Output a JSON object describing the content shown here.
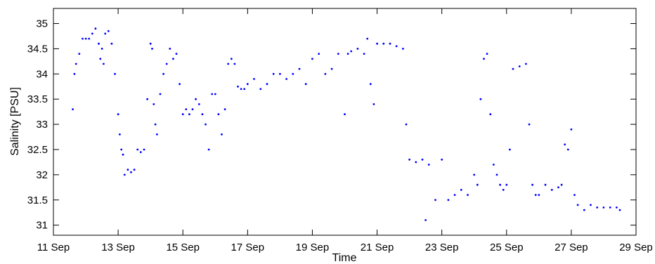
{
  "chart_data": {
    "type": "scatter",
    "title": "",
    "xlabel": "Time",
    "ylabel": "Salinity [PSU]",
    "xlim": [
      "11 Sep",
      "29 Sep"
    ],
    "ylim": [
      30.8,
      35.3
    ],
    "x_ticks": [
      "11 Sep",
      "13 Sep",
      "15 Sep",
      "17 Sep",
      "19 Sep",
      "21 Sep",
      "23 Sep",
      "25 Sep",
      "27 Sep",
      "29 Sep"
    ],
    "y_ticks": [
      "31",
      "31.5",
      "32",
      "32.5",
      "33",
      "33.5",
      "34",
      "34.5",
      "35"
    ],
    "grid": false,
    "marker_color": "#0000ff",
    "series": [
      {
        "x_day": [
          11.6,
          11.65,
          11.7,
          11.8,
          11.9,
          12.0,
          12.1,
          12.2,
          12.3,
          12.4,
          12.45,
          12.5,
          12.55,
          12.6,
          12.7,
          12.8,
          12.9,
          13.0,
          13.05,
          13.1,
          13.15,
          13.2,
          13.3,
          13.4,
          13.5,
          13.6,
          13.7,
          13.8,
          13.9,
          14.0,
          14.05,
          14.1,
          14.15,
          14.2,
          14.3,
          14.4,
          14.5,
          14.6,
          14.7,
          14.8,
          14.9,
          15.0,
          15.1,
          15.2,
          15.3,
          15.4,
          15.5,
          15.6,
          15.7,
          15.8,
          15.9,
          16.0,
          16.1,
          16.2,
          16.3,
          16.4,
          16.5,
          16.6,
          16.7,
          16.8,
          16.9,
          17.0,
          17.2,
          17.4,
          17.6,
          17.8,
          18.0,
          18.2,
          18.4,
          18.6,
          18.8,
          19.0,
          19.2,
          19.4,
          19.6,
          19.8,
          20.0,
          20.1,
          20.2,
          20.4,
          20.6,
          20.7,
          20.8,
          20.9,
          21.0,
          21.2,
          21.4,
          21.6,
          21.8,
          21.9,
          22.0,
          22.2,
          22.4,
          22.5,
          22.6,
          22.8,
          23.0,
          23.2,
          23.4,
          23.6,
          23.8,
          24.0,
          24.1,
          24.2,
          24.3,
          24.4,
          24.5,
          24.6,
          24.7,
          24.8,
          24.9,
          25.0,
          25.1,
          25.2,
          25.4,
          25.6,
          25.7,
          25.8,
          25.9,
          26.0,
          26.2,
          26.4,
          26.6,
          26.7,
          26.8,
          26.9,
          27.0,
          27.1,
          27.2,
          27.4,
          27.6,
          27.8,
          28.0,
          28.2,
          28.4,
          28.5
        ],
        "y": [
          33.3,
          34.0,
          34.2,
          34.4,
          34.7,
          34.7,
          34.7,
          34.8,
          34.9,
          34.6,
          34.3,
          34.5,
          34.2,
          34.8,
          34.85,
          34.6,
          34.0,
          33.2,
          32.8,
          32.5,
          32.4,
          32.0,
          32.1,
          32.05,
          32.1,
          32.5,
          32.45,
          32.5,
          33.5,
          34.6,
          34.5,
          33.4,
          33.0,
          32.8,
          33.6,
          34.0,
          34.2,
          34.5,
          34.3,
          34.4,
          33.8,
          33.2,
          33.3,
          33.2,
          33.3,
          33.5,
          33.4,
          33.2,
          33.0,
          32.5,
          33.6,
          33.6,
          33.2,
          32.8,
          33.3,
          34.2,
          34.3,
          34.2,
          33.75,
          33.7,
          33.7,
          33.8,
          33.9,
          33.7,
          33.8,
          34.0,
          34.0,
          33.9,
          34.0,
          34.1,
          33.8,
          34.3,
          34.4,
          34.0,
          34.1,
          34.4,
          33.2,
          34.4,
          34.45,
          34.5,
          34.4,
          34.7,
          33.8,
          33.4,
          34.6,
          34.6,
          34.6,
          34.55,
          34.5,
          33.0,
          32.3,
          32.25,
          32.3,
          31.1,
          32.2,
          31.5,
          32.3,
          31.5,
          31.6,
          31.7,
          31.6,
          32.0,
          31.8,
          33.5,
          34.3,
          34.4,
          33.2,
          32.2,
          32.0,
          31.8,
          31.7,
          31.8,
          32.5,
          34.1,
          34.15,
          34.2,
          33.0,
          31.8,
          31.6,
          31.6,
          31.8,
          31.7,
          31.75,
          31.8,
          32.6,
          32.5,
          32.9,
          31.6,
          31.4,
          31.3,
          31.4,
          31.35,
          31.35,
          31.35,
          31.35,
          31.3
        ]
      }
    ]
  }
}
